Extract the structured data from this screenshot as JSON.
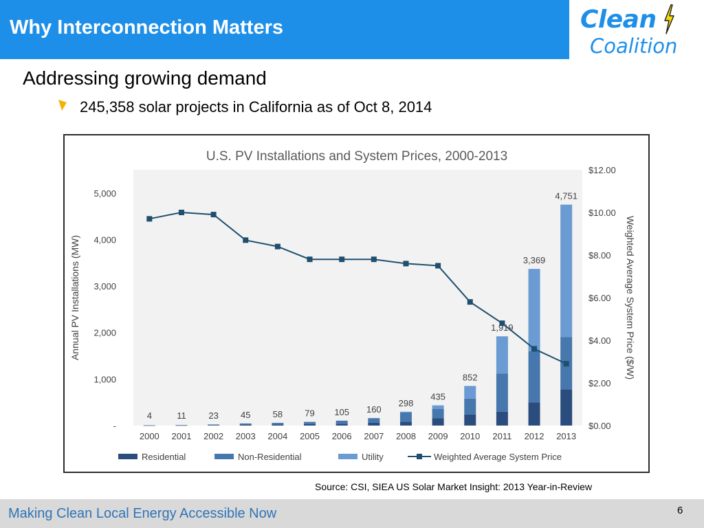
{
  "slide": {
    "title": "Why Interconnection Matters",
    "logo_word1": "Clean",
    "logo_word2": "Coalition",
    "subheading": "Addressing growing demand",
    "bullet": "245,358 solar projects in California as of Oct 8, 2014",
    "source": "Source: CSI, SIEA US Solar Market Insight: 2013 Year-in-Review",
    "footer": "Making Clean Local Energy Accessible Now",
    "page_number": "6"
  },
  "colors": {
    "title_bar": "#1e8fe8",
    "residential": "#2a4d7e",
    "non_residential": "#4677ad",
    "utility": "#6b9bd3",
    "price_line": "#1f4e6e",
    "plot_bg": "#f2f2f2"
  },
  "chart_data": {
    "type": "bar",
    "title": "U.S. PV Installations and System Prices, 2000-2013",
    "ylabel": "Annual  PV Installations (MW)",
    "y2label": "Weighted Average System Price ($/W)",
    "ylim": [
      0,
      5500
    ],
    "y2lim": [
      0,
      12
    ],
    "yticks": [
      "-",
      "1,000",
      "2,000",
      "3,000",
      "4,000",
      "5,000"
    ],
    "yticks_values": [
      0,
      1000,
      2000,
      3000,
      4000,
      5000
    ],
    "y2ticks": [
      "$0.00",
      "$2.00",
      "$4.00",
      "$6.00",
      "$8.00",
      "$10.00",
      "$12.00"
    ],
    "y2ticks_values": [
      0,
      2,
      4,
      6,
      8,
      10,
      12
    ],
    "categories": [
      "2000",
      "2001",
      "2002",
      "2003",
      "2004",
      "2005",
      "2006",
      "2007",
      "2008",
      "2009",
      "2010",
      "2011",
      "2012",
      "2013"
    ],
    "totals": [
      "4",
      "11",
      "23",
      "45",
      "58",
      "79",
      "105",
      "160",
      "298",
      "435",
      "852",
      "1,919",
      "3,369",
      "4,751"
    ],
    "series": [
      {
        "name": "Residential",
        "values": [
          2,
          5,
          10,
          20,
          25,
          30,
          40,
          60,
          80,
          160,
          240,
          300,
          500,
          780
        ]
      },
      {
        "name": "Non-Residential",
        "values": [
          2,
          6,
          13,
          25,
          33,
          49,
          65,
          100,
          200,
          200,
          340,
          820,
          1100,
          1120
        ]
      },
      {
        "name": "Utility",
        "values": [
          0,
          0,
          0,
          0,
          0,
          0,
          0,
          0,
          18,
          75,
          272,
          799,
          1769,
          2851
        ]
      }
    ],
    "line_series": {
      "name": "Weighted Average System Price",
      "values": [
        9.7,
        10.0,
        9.9,
        8.7,
        8.4,
        7.8,
        7.8,
        7.8,
        7.6,
        7.5,
        5.8,
        4.8,
        3.6,
        2.9
      ]
    },
    "legend": [
      "Residential",
      "Non-Residential",
      "Utility",
      "Weighted Average System Price"
    ],
    "legend_position": "bottom"
  }
}
